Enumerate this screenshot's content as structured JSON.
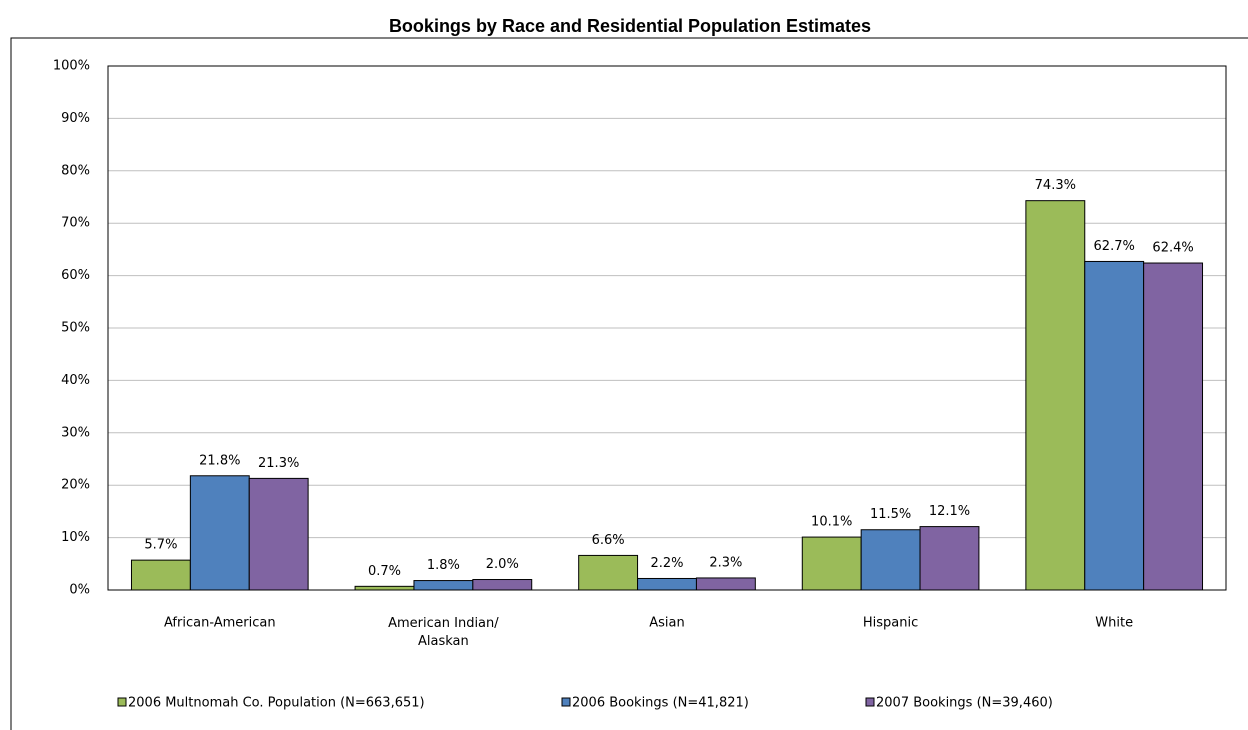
{
  "chart_data": {
    "type": "bar",
    "title": "Bookings by Race and Residential Population Estimates",
    "categories": [
      "African-American",
      "American Indian/\nAlaskan",
      "Asian",
      "Hispanic",
      "White"
    ],
    "series": [
      {
        "name": "2006 Multnomah Co. Population (N=663,651)",
        "color": "#9bbb59",
        "values": [
          5.7,
          0.7,
          6.6,
          10.1,
          74.3
        ],
        "value_labels": [
          "5.7%",
          "0.7%",
          "6.6%",
          "10.1%",
          "74.3%"
        ]
      },
      {
        "name": "2006 Bookings (N=41,821)",
        "color": "#4f81bd",
        "values": [
          21.8,
          1.8,
          2.2,
          11.5,
          62.7
        ],
        "value_labels": [
          "21.8%",
          "1.8%",
          "2.2%",
          "11.5%",
          "62.7%"
        ]
      },
      {
        "name": "2007 Bookings (N=39,460)",
        "color": "#8064a2",
        "values": [
          21.3,
          2.0,
          2.3,
          12.1,
          62.4
        ],
        "value_labels": [
          "21.3%",
          "2.0%",
          "2.3%",
          "12.1%",
          "62.4%"
        ]
      }
    ],
    "ylim": [
      0,
      100
    ],
    "yticks": [
      {
        "value": 0,
        "label": "0%"
      },
      {
        "value": 10,
        "label": "10%"
      },
      {
        "value": 20,
        "label": "20%"
      },
      {
        "value": 30,
        "label": "30%"
      },
      {
        "value": 40,
        "label": "40%"
      },
      {
        "value": 50,
        "label": "50%"
      },
      {
        "value": 60,
        "label": "60%"
      },
      {
        "value": 70,
        "label": "70%"
      },
      {
        "value": 80,
        "label": "80%"
      },
      {
        "value": 90,
        "label": "90%"
      },
      {
        "value": 100,
        "label": "100%"
      }
    ],
    "grid": true
  }
}
